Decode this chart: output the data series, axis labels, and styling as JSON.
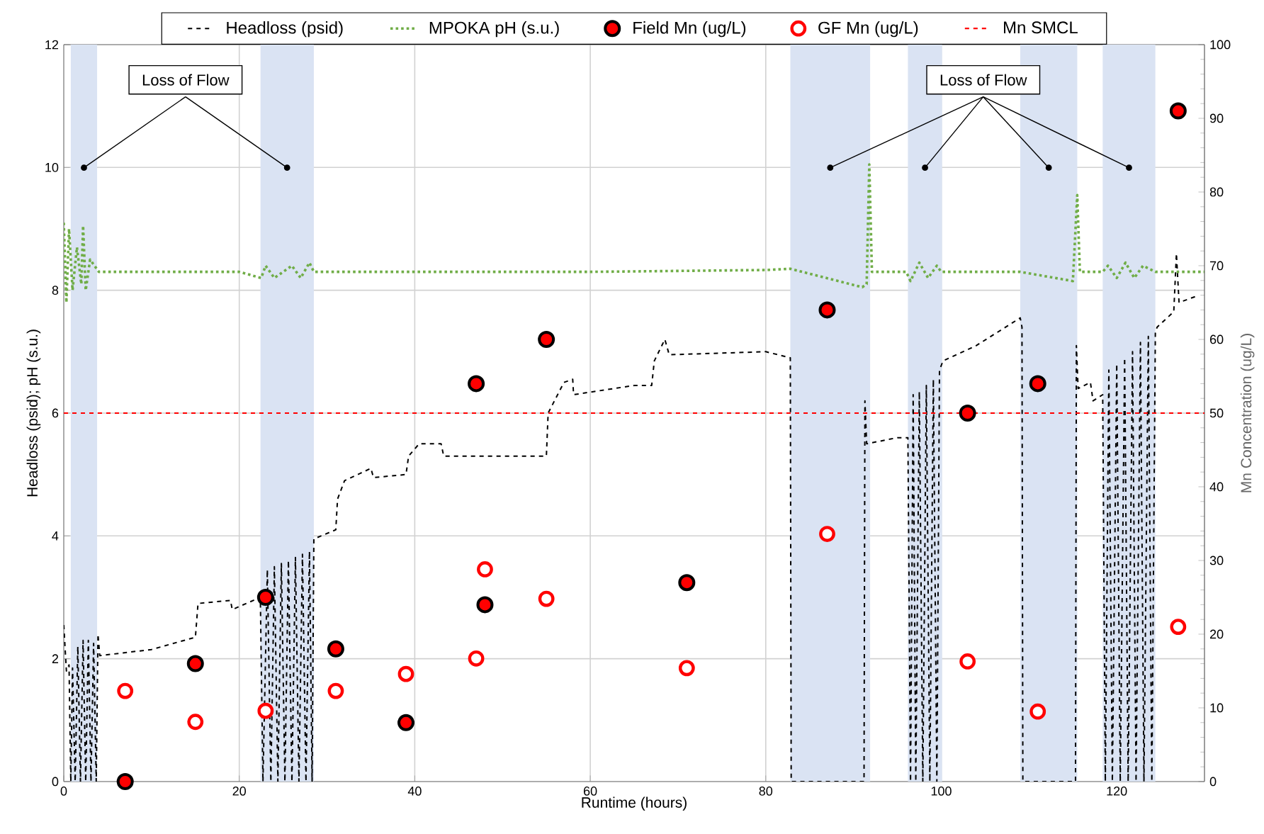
{
  "chart_data": {
    "type": "line",
    "xlabel": "Runtime (hours)",
    "ylabel": "Headloss (psid); pH (s.u.)",
    "y2label": "Mn Concentration (ug/L)",
    "xlim": [
      0,
      130
    ],
    "xticks": [
      0,
      20,
      40,
      60,
      80,
      100,
      120
    ],
    "ylim": [
      0,
      12
    ],
    "yticks": [
      0,
      2,
      4,
      6,
      8,
      10,
      12
    ],
    "y2lim": [
      0,
      100
    ],
    "y2ticks": [
      0,
      10,
      20,
      30,
      40,
      50,
      60,
      70,
      80,
      90,
      100
    ],
    "grid": true,
    "legend": "top",
    "series": [
      {
        "name": "Headloss (psid)",
        "color": "#000000",
        "line_style": "dashed",
        "marker": "none",
        "x": [
          0,
          0.3,
          0.6,
          0.8,
          1.0,
          1.3,
          1.6,
          1.9,
          2.2,
          2.5,
          2.8,
          3.1,
          3.4,
          3.7,
          3.9,
          4.1,
          10,
          15,
          15.3,
          19,
          19.2,
          22.4,
          22.7,
          23.2,
          23.6,
          24.0,
          24.4,
          24.8,
          25.2,
          25.6,
          26.0,
          26.4,
          26.8,
          27.2,
          27.6,
          28.0,
          28.3,
          28.5,
          31,
          31.2,
          32,
          35,
          35.3,
          39,
          39.3,
          40.5,
          43,
          43.3,
          55,
          55.2,
          57,
          58,
          58.1,
          65,
          67,
          67.3,
          68.5,
          69,
          80,
          82.8,
          82.9,
          91.2,
          91.3,
          91.5,
          95,
          96.2,
          96.5,
          96.8,
          97.1,
          97.5,
          97.9,
          98.3,
          98.7,
          99.1,
          99.5,
          99.8,
          100.2,
          104,
          109,
          109.2,
          109.3,
          115.3,
          115.4,
          115.6,
          117,
          117.3,
          118.4,
          118.7,
          119.1,
          119.5,
          120,
          120.4,
          120.9,
          121.3,
          121.8,
          122.2,
          122.7,
          123.1,
          123.6,
          124.0,
          124.4,
          124.6,
          126.5,
          126.8,
          127.1,
          129
        ],
        "values": [
          2.55,
          1.8,
          1.9,
          0,
          1.85,
          0,
          2.2,
          0,
          2.3,
          0,
          2.3,
          0,
          2.25,
          0,
          2.4,
          2.05,
          2.15,
          2.35,
          2.9,
          2.95,
          2.8,
          3.0,
          0,
          3.45,
          0,
          3.5,
          0,
          3.55,
          0,
          3.6,
          0,
          3.65,
          0,
          3.7,
          0,
          3.75,
          0,
          3.95,
          4.1,
          4.6,
          4.9,
          5.1,
          4.95,
          5.0,
          5.3,
          5.5,
          5.5,
          5.3,
          5.3,
          6.0,
          6.5,
          6.55,
          6.3,
          6.45,
          6.45,
          6.85,
          7.2,
          6.95,
          7.0,
          6.9,
          0,
          0,
          6.2,
          5.5,
          5.6,
          5.6,
          0,
          6.3,
          0,
          6.35,
          0,
          6.45,
          0,
          6.55,
          0,
          6.7,
          6.85,
          7.1,
          7.55,
          7.4,
          0,
          0,
          7.1,
          6.4,
          6.5,
          6.2,
          6.3,
          0,
          6.7,
          0,
          6.8,
          0,
          6.9,
          0,
          7.0,
          0,
          7.15,
          0,
          7.25,
          0,
          7.3,
          7.4,
          7.65,
          8.6,
          7.8,
          7.9
        ]
      },
      {
        "name": "MPOKA pH (s.u.)",
        "color": "#70ad47",
        "line_style": "dotted",
        "marker": "none",
        "x": [
          0,
          0.3,
          0.6,
          1,
          1.5,
          2,
          2.2,
          2.5,
          3,
          4,
          10,
          20,
          22.5,
          23,
          24,
          26,
          27,
          28,
          28.5,
          40,
          60,
          80,
          82.8,
          91,
          91.5,
          91.8,
          92.1,
          96,
          96.5,
          97.5,
          98.5,
          99.5,
          100,
          109,
          115,
          115.5,
          115.8,
          118.4,
          119,
          120,
          121,
          122,
          123,
          124.4,
          130
        ],
        "values": [
          9.1,
          7.8,
          9.0,
          8.0,
          8.7,
          8.1,
          9.05,
          8.0,
          8.5,
          8.3,
          8.3,
          8.3,
          8.2,
          8.4,
          8.2,
          8.4,
          8.2,
          8.45,
          8.3,
          8.3,
          8.3,
          8.33,
          8.35,
          8.05,
          8.1,
          10.05,
          8.3,
          8.3,
          8.15,
          8.45,
          8.2,
          8.4,
          8.3,
          8.3,
          8.15,
          9.55,
          8.3,
          8.3,
          8.4,
          8.2,
          8.45,
          8.2,
          8.4,
          8.3,
          8.3
        ]
      },
      {
        "name": "Field Mn (ug/L)",
        "type": "scatter",
        "axis": "y2",
        "color": "#ff0000",
        "marker": "circle",
        "x": [
          7,
          15,
          23,
          31,
          39,
          47,
          48,
          55,
          71,
          87,
          103,
          111,
          127
        ],
        "values": [
          0,
          16,
          25,
          18,
          8,
          54,
          24,
          60,
          27,
          64,
          50,
          54,
          91
        ]
      },
      {
        "name": "GF Mn (ug/L)",
        "type": "scatter",
        "axis": "y2",
        "color": "#ff0000",
        "marker": "circle",
        "x": [
          7,
          15,
          23,
          31,
          39,
          47,
          48,
          55,
          71,
          87,
          103,
          111,
          127
        ],
        "values": [
          12.3,
          8.1,
          9.6,
          12.3,
          14.6,
          16.7,
          28.8,
          24.8,
          15.4,
          33.6,
          16.3,
          9.5,
          21
        ]
      }
    ],
    "ref_lines": [
      {
        "axis": "y2",
        "value": 50,
        "label": "Mn SMCL",
        "color": "#ff0000",
        "line_style": "dashed"
      }
    ],
    "bands": [
      {
        "axis": "x",
        "from": 0.8,
        "to": 3.8,
        "color": "#dae3f3"
      },
      {
        "axis": "x",
        "from": 22.4,
        "to": 28.5,
        "color": "#dae3f3"
      },
      {
        "axis": "x",
        "from": 82.8,
        "to": 91.9,
        "color": "#dae3f3"
      },
      {
        "axis": "x",
        "from": 96.2,
        "to": 100.1,
        "color": "#dae3f3"
      },
      {
        "axis": "x",
        "from": 109,
        "to": 115.5,
        "color": "#dae3f3"
      },
      {
        "axis": "x",
        "from": 118.4,
        "to": 124.4,
        "color": "#dae3f3"
      }
    ],
    "annotations": [
      "Loss of Flow",
      "Loss of Flow"
    ]
  }
}
